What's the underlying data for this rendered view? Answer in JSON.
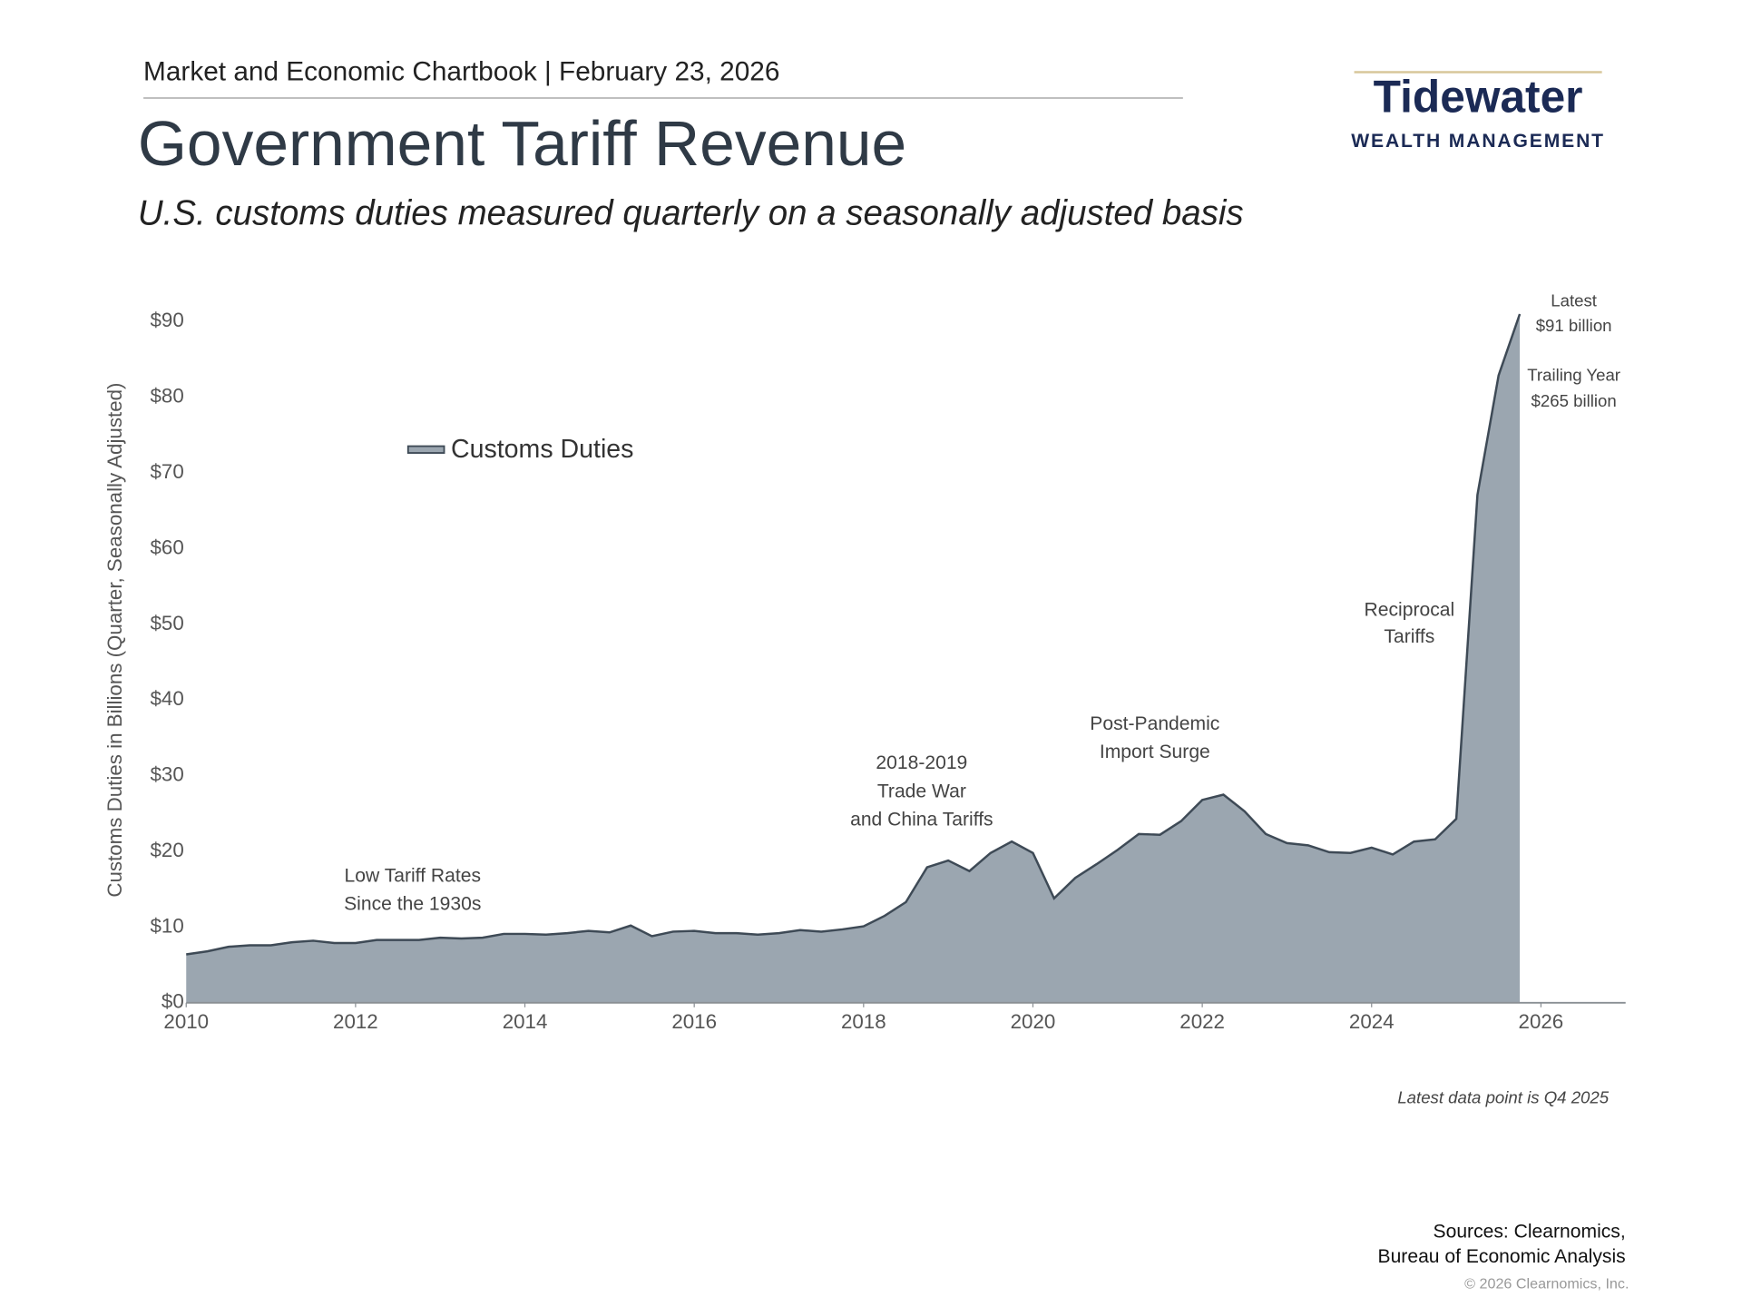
{
  "header": {
    "publication": "Market and Economic Chartbook | February 23, 2026",
    "logo_name": "Tidewater",
    "logo_sub": "WEALTH MANAGEMENT"
  },
  "chart_data": {
    "type": "area",
    "title": "Government Tariff Revenue",
    "subtitle": "U.S. customs duties measured quarterly on a seasonally adjusted basis",
    "y_label": "Customs Duties in Billions (Quarter, Seasonally Adjusted)",
    "x": [
      2010,
      2010.25,
      2010.5,
      2010.75,
      2011,
      2011.25,
      2011.5,
      2011.75,
      2012,
      2012.25,
      2012.5,
      2012.75,
      2013,
      2013.25,
      2013.5,
      2013.75,
      2014,
      2014.25,
      2014.5,
      2014.75,
      2015,
      2015.25,
      2015.5,
      2015.75,
      2016,
      2016.25,
      2016.5,
      2016.75,
      2017,
      2017.25,
      2017.5,
      2017.75,
      2018,
      2018.25,
      2018.5,
      2018.75,
      2019,
      2019.25,
      2019.5,
      2019.75,
      2020,
      2020.25,
      2020.5,
      2020.75,
      2021,
      2021.25,
      2021.5,
      2021.75,
      2022,
      2022.25,
      2022.5,
      2022.75,
      2023,
      2023.25,
      2023.5,
      2023.75,
      2024,
      2024.25,
      2024.5,
      2024.75,
      2025,
      2025.25,
      2025.5,
      2025.75
    ],
    "series": [
      {
        "name": "Customs Duties",
        "color": "#9ba6b0",
        "line_color": "#3e4a56",
        "values": [
          6.4,
          6.8,
          7.4,
          7.6,
          7.6,
          8.0,
          8.2,
          7.9,
          7.9,
          8.3,
          8.3,
          8.3,
          8.6,
          8.5,
          8.6,
          9.1,
          9.1,
          9.0,
          9.2,
          9.5,
          9.3,
          10.2,
          8.8,
          9.4,
          9.5,
          9.2,
          9.2,
          9.0,
          9.2,
          9.6,
          9.4,
          9.7,
          10.1,
          11.5,
          13.3,
          17.9,
          18.8,
          17.4,
          19.8,
          21.3,
          19.8,
          13.8,
          16.5,
          18.3,
          20.2,
          22.3,
          22.2,
          24.0,
          26.8,
          27.5,
          25.3,
          22.3,
          21.1,
          20.8,
          19.9,
          19.8,
          20.5,
          19.6,
          21.3,
          21.6,
          24.3,
          67.1,
          82.9,
          91
        ]
      }
    ],
    "xlim": [
      2010,
      2027
    ],
    "xticks": [
      2010,
      2012,
      2014,
      2016,
      2018,
      2020,
      2022,
      2024,
      2026
    ],
    "ylim": [
      0,
      92
    ],
    "yticks": [
      {
        "value": 0,
        "label": "$0"
      },
      {
        "value": 10,
        "label": "$10"
      },
      {
        "value": 20,
        "label": "$20"
      },
      {
        "value": 30,
        "label": "$30"
      },
      {
        "value": 40,
        "label": "$40"
      },
      {
        "value": 50,
        "label": "$50"
      },
      {
        "value": 60,
        "label": "$60"
      },
      {
        "value": 70,
        "label": "$70"
      },
      {
        "value": 80,
        "label": "$80"
      },
      {
        "value": 90,
        "label": "$90"
      }
    ],
    "grid": false,
    "legend": "upper left",
    "annotations": [
      [
        "Low Tariff Rates",
        "Since the 1930s"
      ],
      [
        "2018-2019",
        "Trade War",
        "and China Tariffs"
      ],
      [
        "Post-Pandemic",
        "Import Surge"
      ],
      [
        "Reciprocal",
        "Tariffs"
      ],
      [
        "Latest",
        "$91 billion"
      ],
      [
        "Trailing Year",
        "$265 billion"
      ]
    ],
    "note": "Latest data point is Q4 2025"
  },
  "footer": {
    "sources": [
      "Sources: Clearnomics,",
      "Bureau of Economic Analysis"
    ],
    "copyright": "© 2026 Clearnomics, Inc."
  }
}
